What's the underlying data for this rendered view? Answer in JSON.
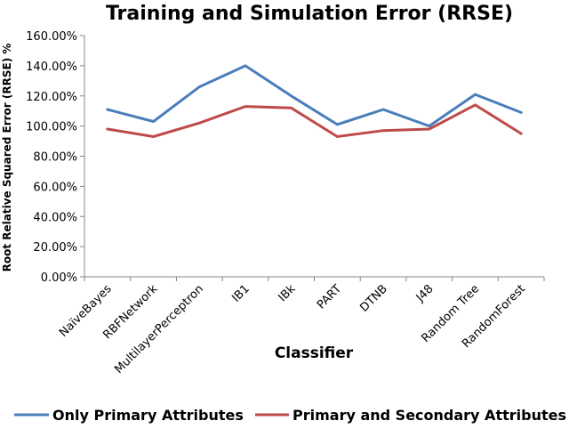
{
  "chart_data": {
    "type": "line",
    "title": "Training and Simulation Error (RRSE)",
    "xlabel": "Classifier",
    "ylabel": "Root Relative Squared Error (RRSE) %",
    "categories": [
      "NaïveBayes",
      "RBFNetwork",
      "MultilayerPerceptron",
      "IB1",
      "IBk",
      "PART",
      "DTNB",
      "J48",
      "Random Tree",
      "RandomForest"
    ],
    "yticks": [
      "0.00%",
      "20.00%",
      "40.00%",
      "60.00%",
      "80.00%",
      "100.00%",
      "120.00%",
      "140.00%",
      "160.00%"
    ],
    "ylim": [
      0,
      160
    ],
    "grid": false,
    "legend_position": "bottom",
    "series": [
      {
        "name": "Only Primary Attributes",
        "color": "#4a7ebb",
        "values": [
          111,
          103,
          126,
          140,
          120,
          101,
          111,
          100,
          121,
          109
        ]
      },
      {
        "name": "Primary and Secondary Attributes",
        "color": "#be4b48",
        "values": [
          98,
          93,
          102,
          113,
          112,
          93,
          97,
          98,
          114,
          95
        ]
      }
    ]
  }
}
